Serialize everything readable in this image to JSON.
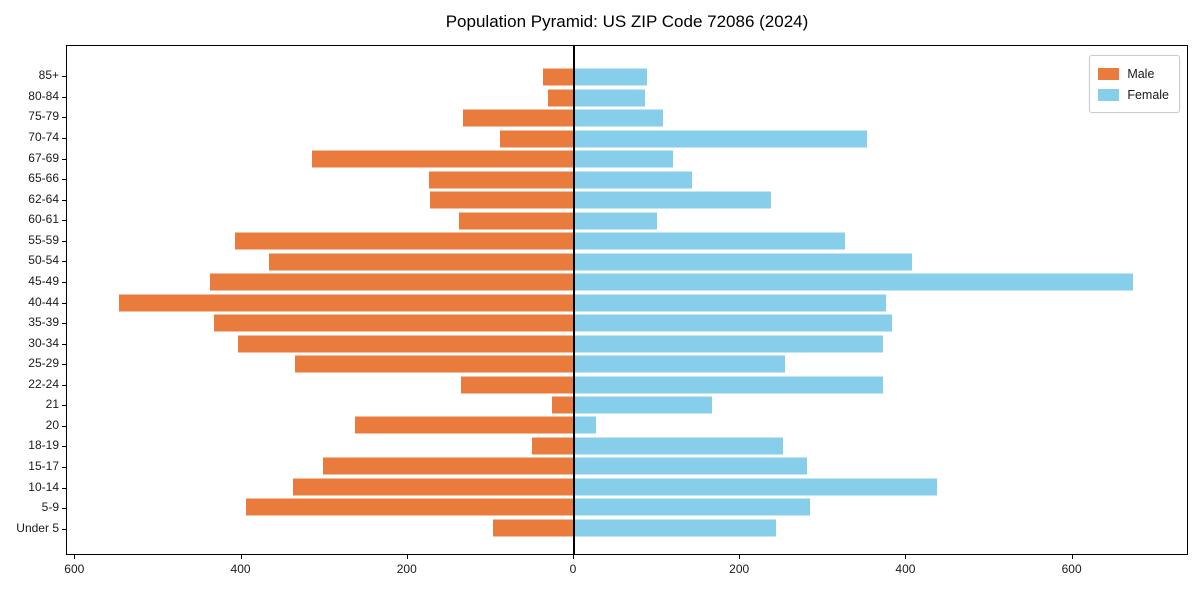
{
  "chart_data": {
    "type": "bar",
    "variant": "population-pyramid",
    "orientation": "horizontal",
    "title": "Population Pyramid: US ZIP Code 72086 (2024)",
    "xlabel": "",
    "ylabel": "",
    "categories": [
      "85+",
      "80-84",
      "75-79",
      "70-74",
      "67-69",
      "65-66",
      "62-64",
      "60-61",
      "55-59",
      "50-54",
      "45-49",
      "40-44",
      "35-39",
      "30-34",
      "25-29",
      "22-24",
      "21",
      "20",
      "18-19",
      "15-17",
      "10-14",
      "5-9",
      "Under 5"
    ],
    "series": [
      {
        "name": "Male",
        "side": "left",
        "color": "#e97c3c",
        "values": [
          36,
          30,
          133,
          88,
          315,
          174,
          172,
          138,
          408,
          366,
          438,
          547,
          433,
          404,
          335,
          135,
          25,
          263,
          50,
          301,
          337,
          394,
          96
        ]
      },
      {
        "name": "Female",
        "side": "right",
        "color": "#87ceeb",
        "values": [
          89,
          87,
          108,
          354,
          120,
          143,
          239,
          101,
          328,
          409,
          675,
          377,
          385,
          373,
          256,
          373,
          168,
          28,
          253,
          282,
          439,
          286,
          245
        ]
      }
    ],
    "xlim": [
      -610,
      740
    ],
    "x_ticks": [
      {
        "value": -600,
        "label": "600"
      },
      {
        "value": -400,
        "label": "400"
      },
      {
        "value": -200,
        "label": "200"
      },
      {
        "value": 0,
        "label": "0"
      },
      {
        "value": 200,
        "label": "200"
      },
      {
        "value": 400,
        "label": "400"
      },
      {
        "value": 600,
        "label": "600"
      }
    ],
    "grid": false,
    "zero_line": true,
    "legend": {
      "position": "upper-right",
      "entries": [
        "Male",
        "Female"
      ]
    }
  }
}
